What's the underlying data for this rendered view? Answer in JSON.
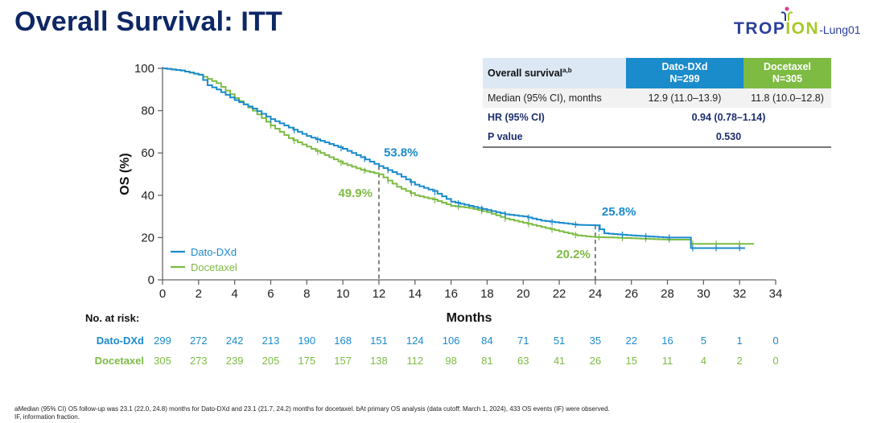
{
  "title": "Overall Survival: ITT",
  "logo": {
    "part1": "TROP",
    "part2": "ION",
    "suffix": "-Lung01"
  },
  "table": {
    "header_label": "Overall survival",
    "header_sup": "a,b",
    "col1_name": "Dato-DXd",
    "col1_n": "N=299",
    "col2_name": "Docetaxel",
    "col2_n": "N=305",
    "rows": [
      {
        "label": "Median (95% CI), months",
        "col1": "12.9 (11.0–13.9)",
        "col2": "11.8 (10.0–12.8)"
      },
      {
        "label": "HR (95% CI)",
        "value": "0.94 (0.78–1.14)"
      },
      {
        "label": "P value",
        "value": "0.530"
      }
    ]
  },
  "risk": {
    "heading": "No. at risk:",
    "rows": [
      {
        "name": "Dato-DXd",
        "values": [
          "299",
          "272",
          "242",
          "213",
          "190",
          "168",
          "151",
          "124",
          "106",
          "84",
          "71",
          "51",
          "35",
          "22",
          "16",
          "5",
          "1",
          "0"
        ]
      },
      {
        "name": "Docetaxel",
        "values": [
          "305",
          "273",
          "239",
          "205",
          "175",
          "157",
          "138",
          "112",
          "98",
          "81",
          "63",
          "41",
          "26",
          "15",
          "11",
          "4",
          "2",
          "0"
        ]
      }
    ]
  },
  "footnotes": [
    "aMedian (95% CI) OS follow-up was 23.1 (22.0, 24.8) months for Dato-DXd and 23.1 (21.7, 24.2) months for docetaxel. bAt primary OS analysis (data cutoff: March 1, 2024), 433 OS events (IF) were observed.",
    "IF, information fraction."
  ],
  "chart_data": {
    "type": "line",
    "title": "Overall Survival: ITT",
    "xlabel": "Months",
    "ylabel": "OS (%)",
    "xlim": [
      0,
      34
    ],
    "ylim": [
      0,
      100
    ],
    "xticks": [
      0,
      2,
      4,
      6,
      8,
      10,
      12,
      14,
      16,
      18,
      20,
      22,
      24,
      26,
      28,
      30,
      32,
      34
    ],
    "yticks": [
      0,
      20,
      40,
      60,
      80,
      100
    ],
    "grid": false,
    "legend_position": "bottom-left",
    "series": [
      {
        "name": "Dato-DXd",
        "color": "#1a8bcb",
        "x": [
          0,
          1,
          2,
          2.5,
          3,
          4,
          5,
          6,
          7,
          8,
          9,
          10,
          11,
          12,
          13,
          14,
          15,
          16,
          17,
          18,
          19,
          20,
          21,
          22,
          23,
          24,
          24.5,
          26,
          28,
          29.2,
          29.3,
          32.3
        ],
        "y": [
          100,
          99,
          97,
          92,
          90,
          85,
          81,
          76,
          72,
          68,
          65,
          62,
          58,
          53.8,
          50,
          45,
          42,
          37,
          35,
          33,
          31,
          30,
          28,
          27,
          26,
          25.8,
          22,
          21,
          20,
          20,
          15,
          15
        ]
      },
      {
        "name": "Docetaxel",
        "color": "#7dbb42",
        "x": [
          0,
          1,
          2,
          3,
          4,
          5,
          6,
          7,
          8,
          9,
          10,
          11,
          12,
          13,
          14,
          15,
          16,
          17,
          18,
          19,
          20,
          21,
          22,
          23,
          24,
          25,
          28,
          29,
          29.3,
          32.8
        ],
        "y": [
          100,
          99,
          97,
          93,
          86,
          80,
          73,
          67,
          63,
          59,
          55,
          52,
          49.9,
          44,
          40,
          38,
          35,
          34,
          32,
          29,
          27,
          25,
          23,
          21,
          20.2,
          20,
          19,
          19,
          17,
          17
        ]
      }
    ],
    "annotations": [
      {
        "text": "53.8%",
        "series": "Dato-DXd",
        "x": 12,
        "y": 53.8
      },
      {
        "text": "49.9%",
        "series": "Docetaxel",
        "x": 12,
        "y": 49.9
      },
      {
        "text": "25.8%",
        "series": "Dato-DXd",
        "x": 24,
        "y": 25.8
      },
      {
        "text": "20.2%",
        "series": "Docetaxel",
        "x": 24,
        "y": 20.2
      }
    ],
    "reference_lines_x": [
      12,
      24
    ]
  }
}
